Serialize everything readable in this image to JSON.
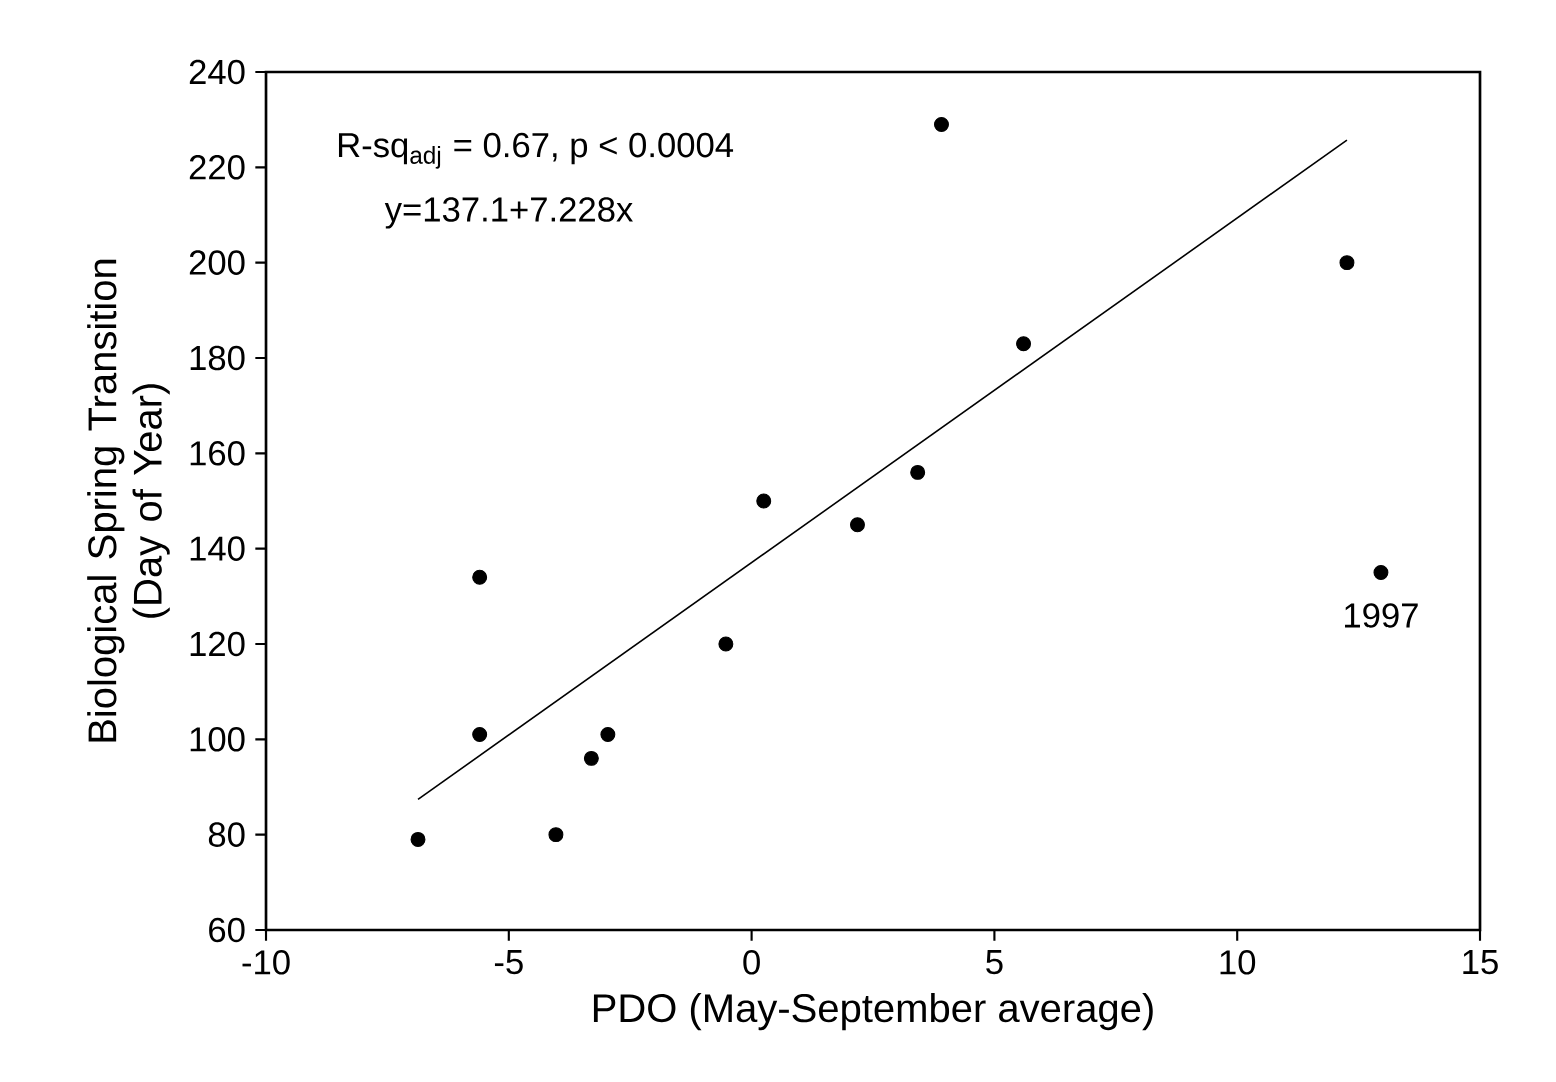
{
  "chart_data": {
    "type": "scatter",
    "xlabel": "PDO (May-September average)",
    "ylabel": "Biological Spring Transition\n(Day of Year)",
    "xlim": [
      -10,
      15
    ],
    "xticks": [
      -10,
      -5,
      0,
      5,
      10,
      15
    ],
    "ylim": [
      60,
      240
    ],
    "yticks": [
      60,
      80,
      100,
      120,
      140,
      160,
      180,
      200,
      220,
      240
    ],
    "series": [
      {
        "marker": "circle",
        "color": "#000000",
        "x": [
          -6.87,
          -5.6,
          -5.6,
          -4.03,
          -3.3,
          -2.96,
          -0.53,
          0.25,
          2.18,
          3.42,
          3.91,
          5.6,
          12.26,
          12.96
        ],
        "values": [
          79,
          134,
          101,
          80,
          96,
          101,
          120,
          150,
          145,
          156,
          229,
          183,
          200,
          135
        ]
      },
      {
        "type": "line",
        "marker": "none",
        "color": "#000000",
        "x": [
          -6.87,
          12.26
        ],
        "values": [
          87.4,
          225.7
        ]
      }
    ],
    "annotations": [
      "R-sq$_{adj}$ = 0.67, p < 0.0004",
      "y=137.1+7.228x",
      {
        "text": "1997",
        "x": 12.96,
        "y": 135
      }
    ]
  }
}
